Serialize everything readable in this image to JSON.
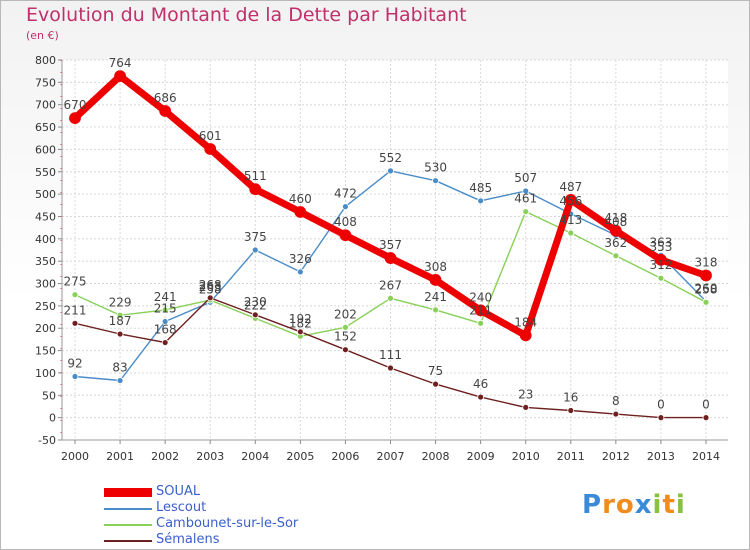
{
  "chart_data": {
    "type": "line",
    "title": "Evolution du Montant de la Dette par Habitant",
    "unit_label": "(en €)",
    "x": [
      "2000",
      "2001",
      "2002",
      "2003",
      "2004",
      "2005",
      "2006",
      "2007",
      "2008",
      "2009",
      "2010",
      "2011",
      "2012",
      "2013",
      "2014"
    ],
    "ylim": [
      -50,
      800
    ],
    "yticks": [
      -50,
      0,
      50,
      100,
      150,
      200,
      250,
      300,
      350,
      400,
      450,
      500,
      550,
      600,
      650,
      700,
      750,
      800
    ],
    "grid": true,
    "legend_position": "bottom-left",
    "series": [
      {
        "name": "SOUAL",
        "color": "#ee0000",
        "thick": true,
        "values": [
          670,
          764,
          686,
          601,
          511,
          460,
          408,
          357,
          308,
          240,
          184,
          487,
          418,
          353,
          318
        ]
      },
      {
        "name": "Lescout",
        "color": "#4a8cc8",
        "thick": false,
        "values": [
          92,
          83,
          215,
          258,
          375,
          326,
          472,
          552,
          530,
          485,
          507,
          456,
          408,
          363,
          260
        ]
      },
      {
        "name": "Cambounet-sur-le-Sor",
        "color": "#88d058",
        "thick": false,
        "values": [
          275,
          229,
          241,
          263,
          222,
          182,
          202,
          267,
          241,
          211,
          461,
          413,
          362,
          312,
          258
        ]
      },
      {
        "name": "Sémalens",
        "color": "#6e2020",
        "thick": false,
        "values": [
          211,
          187,
          168,
          268,
          230,
          192,
          152,
          111,
          75,
          46,
          23,
          16,
          8,
          0,
          0
        ]
      }
    ]
  },
  "logo": {
    "letters": [
      "P",
      "r",
      "o",
      "x",
      "i",
      "t",
      "i"
    ],
    "colors": [
      "#3a8ad8",
      "#f08c1e",
      "#f08c1e",
      "#3a8ad8",
      "#88c040",
      "#f08c1e",
      "#88c040"
    ]
  }
}
